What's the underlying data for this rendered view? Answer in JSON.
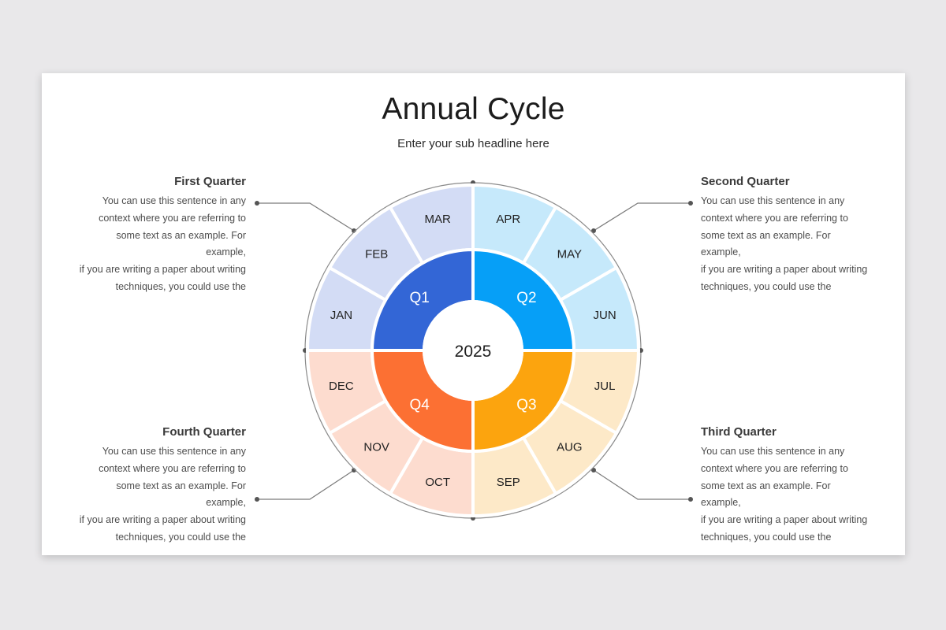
{
  "slide": {
    "title": "Annual Cycle",
    "subtitle": "Enter your sub headline here"
  },
  "wheel": {
    "center_label": "2025",
    "quarters": [
      {
        "label": "Q1",
        "color": "#3366d6"
      },
      {
        "label": "Q2",
        "color": "#069ff7"
      },
      {
        "label": "Q3",
        "color": "#fca40e"
      },
      {
        "label": "Q4",
        "color": "#fc7033"
      }
    ],
    "months": [
      {
        "label": "JAN",
        "color": "#d3dcf5"
      },
      {
        "label": "FEB",
        "color": "#d3dcf5"
      },
      {
        "label": "MAR",
        "color": "#d3dcf5"
      },
      {
        "label": "APR",
        "color": "#c6e9fb"
      },
      {
        "label": "MAY",
        "color": "#c6e9fb"
      },
      {
        "label": "JUN",
        "color": "#c6e9fb"
      },
      {
        "label": "JUL",
        "color": "#fde9c8"
      },
      {
        "label": "AUG",
        "color": "#fde9c8"
      },
      {
        "label": "SEP",
        "color": "#fde9c8"
      },
      {
        "label": "OCT",
        "color": "#fddccf"
      },
      {
        "label": "NOV",
        "color": "#fddccf"
      },
      {
        "label": "DEC",
        "color": "#fddccf"
      }
    ]
  },
  "descriptions": [
    {
      "title": "First Quarter",
      "lines": [
        "You can use this sentence  in any",
        "context  where you are referring to",
        "some text as an example. For example,",
        "if you are writing a paper about writing",
        "techniques,  you could use the"
      ]
    },
    {
      "title": "Second Quarter",
      "lines": [
        "You can use this sentence  in any",
        "context  where you are referring to",
        "some text as an example. For example,",
        "if you are writing a paper about writing",
        "techniques,  you could use the"
      ]
    },
    {
      "title": "Third Quarter",
      "lines": [
        "You can use this sentence  in any",
        "context  where you are referring to",
        "some text as an example. For example,",
        "if you are writing a paper about writing",
        "techniques,  you could use the"
      ]
    },
    {
      "title": "Fourth Quarter",
      "lines": [
        "You can use this sentence  in any",
        "context  where you are referring to",
        "some text as an example. For example,",
        "if you are writing a paper about writing",
        "techniques,  you could use the"
      ]
    }
  ]
}
